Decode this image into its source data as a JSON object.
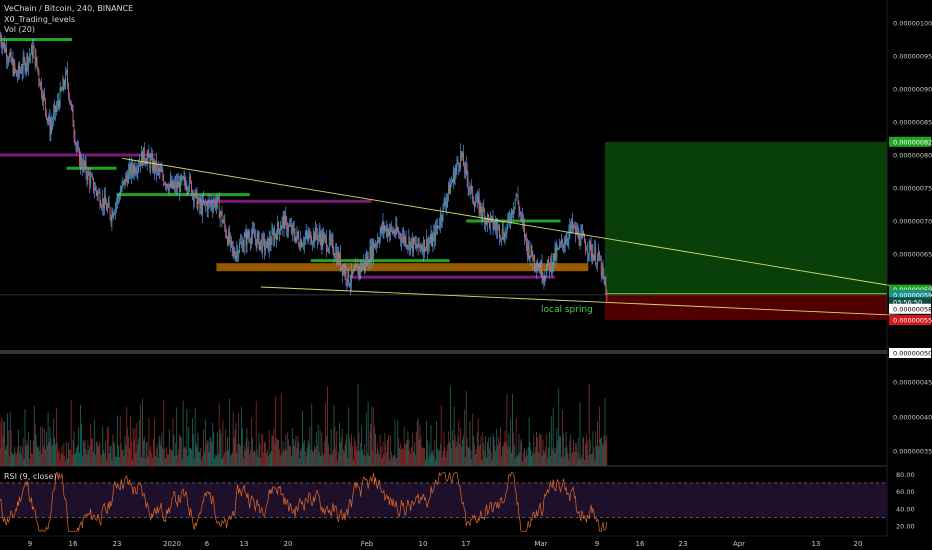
{
  "header": {
    "symbol_line": "VeChain / Bitcoin, 240, BINANCE",
    "indicator_1": "X0_Trading_levels",
    "indicator_2": "Vol (20)",
    "rsi_label": "RSI (9, close)"
  },
  "annotation": "local spring",
  "price_labels": {
    "target": "0.00000082",
    "current": "0.00000059",
    "entry": "0.00000059",
    "countdown": "03:56:50",
    "level_58": "0.00000058",
    "stop": "0.00000055",
    "base": "0.00000050"
  },
  "colors": {
    "up": "#26a69a",
    "down": "#ef5350",
    "wick": "#6fa8ff",
    "profit": "#0b4a0b",
    "loss": "#5a0000",
    "trendline": "#d9dc6a",
    "level_green": "#1fa51f",
    "level_purple": "#7b1a7b",
    "level_orange": "#b36b00",
    "rsi_line": "#e06a2a",
    "rsi_band": "#1e0f2a"
  },
  "chart_data": {
    "type": "candlestick",
    "title": "VeChain / Bitcoin, 240, BINANCE",
    "y_axis_ticks": [
      "0.00000100",
      "0.00000095",
      "0.00000090",
      "0.00000085",
      "0.00000080",
      "0.00000075",
      "0.00000070",
      "0.00000065",
      "0.00000060",
      "0.00000055",
      "0.00000050"
    ],
    "ylim": [
      4.8e-07,
      1.01e-06
    ],
    "x_axis_ticks": [
      "9",
      "16",
      "23",
      "2020",
      "6",
      "13",
      "20",
      "Feb",
      "10",
      "17",
      "Mar",
      "9",
      "16",
      "23",
      "Apr",
      "13",
      "20"
    ],
    "close_path": [
      {
        "d": 0,
        "p": 98
      },
      {
        "d": 3,
        "p": 92
      },
      {
        "d": 6,
        "p": 96
      },
      {
        "d": 9,
        "p": 84
      },
      {
        "d": 12,
        "p": 92
      },
      {
        "d": 14,
        "p": 80
      },
      {
        "d": 17,
        "p": 75
      },
      {
        "d": 20,
        "p": 71
      },
      {
        "d": 23,
        "p": 77
      },
      {
        "d": 26,
        "p": 80
      },
      {
        "d": 28,
        "p": 78
      },
      {
        "d": 31,
        "p": 75
      },
      {
        "d": 34,
        "p": 76
      },
      {
        "d": 36,
        "p": 72
      },
      {
        "d": 39,
        "p": 73
      },
      {
        "d": 42,
        "p": 65
      },
      {
        "d": 45,
        "p": 68
      },
      {
        "d": 48,
        "p": 66
      },
      {
        "d": 51,
        "p": 70
      },
      {
        "d": 54,
        "p": 67
      },
      {
        "d": 57,
        "p": 68
      },
      {
        "d": 60,
        "p": 66
      },
      {
        "d": 63,
        "p": 61
      },
      {
        "d": 66,
        "p": 64
      },
      {
        "d": 69,
        "p": 69
      },
      {
        "d": 72,
        "p": 68
      },
      {
        "d": 75,
        "p": 66
      },
      {
        "d": 78,
        "p": 67
      },
      {
        "d": 81,
        "p": 75
      },
      {
        "d": 83,
        "p": 80
      },
      {
        "d": 85,
        "p": 74
      },
      {
        "d": 88,
        "p": 70
      },
      {
        "d": 91,
        "p": 68
      },
      {
        "d": 93,
        "p": 74
      },
      {
        "d": 95,
        "p": 66
      },
      {
        "d": 98,
        "p": 62
      },
      {
        "d": 101,
        "p": 66
      },
      {
        "d": 103,
        "p": 69
      },
      {
        "d": 106,
        "p": 66
      },
      {
        "d": 108,
        "p": 64
      },
      {
        "d": 109.5,
        "p": 58
      }
    ],
    "volume_ylim": [
      0,
      9
    ],
    "volume_relative": [
      2.5,
      3.2,
      4.5,
      2.1,
      5.8,
      3.1,
      2.2,
      1.8,
      3.9,
      2.7,
      1.5,
      4.2,
      2.9,
      1.9,
      2.4,
      1.2,
      2.8,
      3.3,
      1.7,
      2.2,
      2.6,
      1.4,
      3.7,
      2.1,
      1.9,
      2.3,
      1.6,
      5.1,
      2.0,
      1.8,
      3.5,
      2.4,
      1.3,
      2.7,
      2.2,
      3.0,
      1.8,
      5.6,
      3.1,
      2.5,
      1.9,
      4.1,
      2.3,
      1.6,
      2.9,
      2.2,
      3.8,
      1.7,
      5.2,
      2.6
    ],
    "rsi": {
      "label": "RSI (9, close)",
      "ticks": [
        "80.00",
        "60.00",
        "40.00",
        "20.00"
      ],
      "band": [
        30,
        70
      ]
    },
    "trendlines": [
      {
        "name": "upper",
        "from": {
          "d": 22,
          "p": 79.5
        },
        "to": {
          "d": 162,
          "p": 60
        }
      },
      {
        "name": "lower",
        "from": {
          "d": 47,
          "p": 60
        },
        "to": {
          "d": 162,
          "p": 55.7
        }
      }
    ],
    "levels": [
      {
        "color": "green",
        "p": 97.5,
        "from_d": 0,
        "to_d": 13
      },
      {
        "color": "purple",
        "p": 80,
        "from_d": 0,
        "to_d": 28
      },
      {
        "color": "green",
        "p": 78,
        "from_d": 12,
        "to_d": 21
      },
      {
        "color": "green",
        "p": 74,
        "from_d": 21,
        "to_d": 45
      },
      {
        "color": "purple",
        "p": 73,
        "from_d": 36,
        "to_d": 67
      },
      {
        "color": "green",
        "p": 70,
        "from_d": 84,
        "to_d": 101
      },
      {
        "color": "green",
        "p": 64,
        "from_d": 56,
        "to_d": 81
      },
      {
        "color": "orange",
        "p": 63,
        "from_d": 39,
        "to_d": 106
      },
      {
        "color": "purple",
        "p": 61.5,
        "from_d": 63,
        "to_d": 100
      }
    ],
    "position": {
      "entry": 5.9e-07,
      "target": 8.2e-07,
      "stop": 5.5e-07,
      "from_d": 109,
      "to_d": 162
    }
  }
}
